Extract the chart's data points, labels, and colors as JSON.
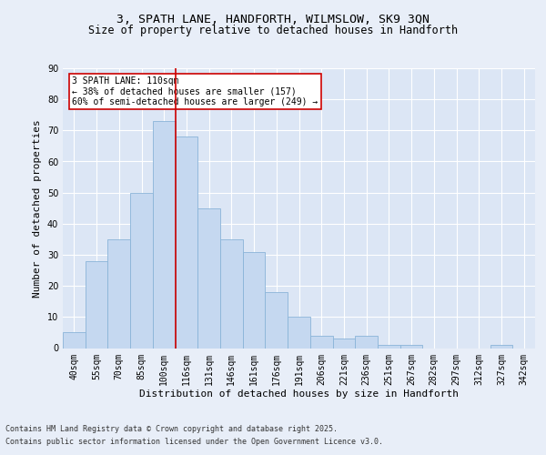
{
  "title_line1": "3, SPATH LANE, HANDFORTH, WILMSLOW, SK9 3QN",
  "title_line2": "Size of property relative to detached houses in Handforth",
  "xlabel": "Distribution of detached houses by size in Handforth",
  "ylabel": "Number of detached properties",
  "categories": [
    "40sqm",
    "55sqm",
    "70sqm",
    "85sqm",
    "100sqm",
    "116sqm",
    "131sqm",
    "146sqm",
    "161sqm",
    "176sqm",
    "191sqm",
    "206sqm",
    "221sqm",
    "236sqm",
    "251sqm",
    "267sqm",
    "282sqm",
    "297sqm",
    "312sqm",
    "327sqm",
    "342sqm"
  ],
  "values": [
    5,
    28,
    35,
    50,
    73,
    68,
    45,
    35,
    31,
    18,
    10,
    4,
    3,
    4,
    1,
    1,
    0,
    0,
    0,
    1,
    0
  ],
  "bar_color": "#c5d8f0",
  "bar_edge_color": "#8ab4d8",
  "vline_color": "#cc0000",
  "annotation_text": "3 SPATH LANE: 110sqm\n← 38% of detached houses are smaller (157)\n60% of semi-detached houses are larger (249) →",
  "annotation_box_color": "#ffffff",
  "annotation_box_edge_color": "#cc0000",
  "ylim": [
    0,
    90
  ],
  "yticks": [
    0,
    10,
    20,
    30,
    40,
    50,
    60,
    70,
    80,
    90
  ],
  "background_color": "#dce6f5",
  "grid_color": "#ffffff",
  "fig_background": "#e8eef8",
  "footer_line1": "Contains HM Land Registry data © Crown copyright and database right 2025.",
  "footer_line2": "Contains public sector information licensed under the Open Government Licence v3.0.",
  "title_fontsize": 9.5,
  "subtitle_fontsize": 8.5,
  "tick_fontsize": 7,
  "label_fontsize": 8,
  "footer_fontsize": 6,
  "annot_fontsize": 7
}
